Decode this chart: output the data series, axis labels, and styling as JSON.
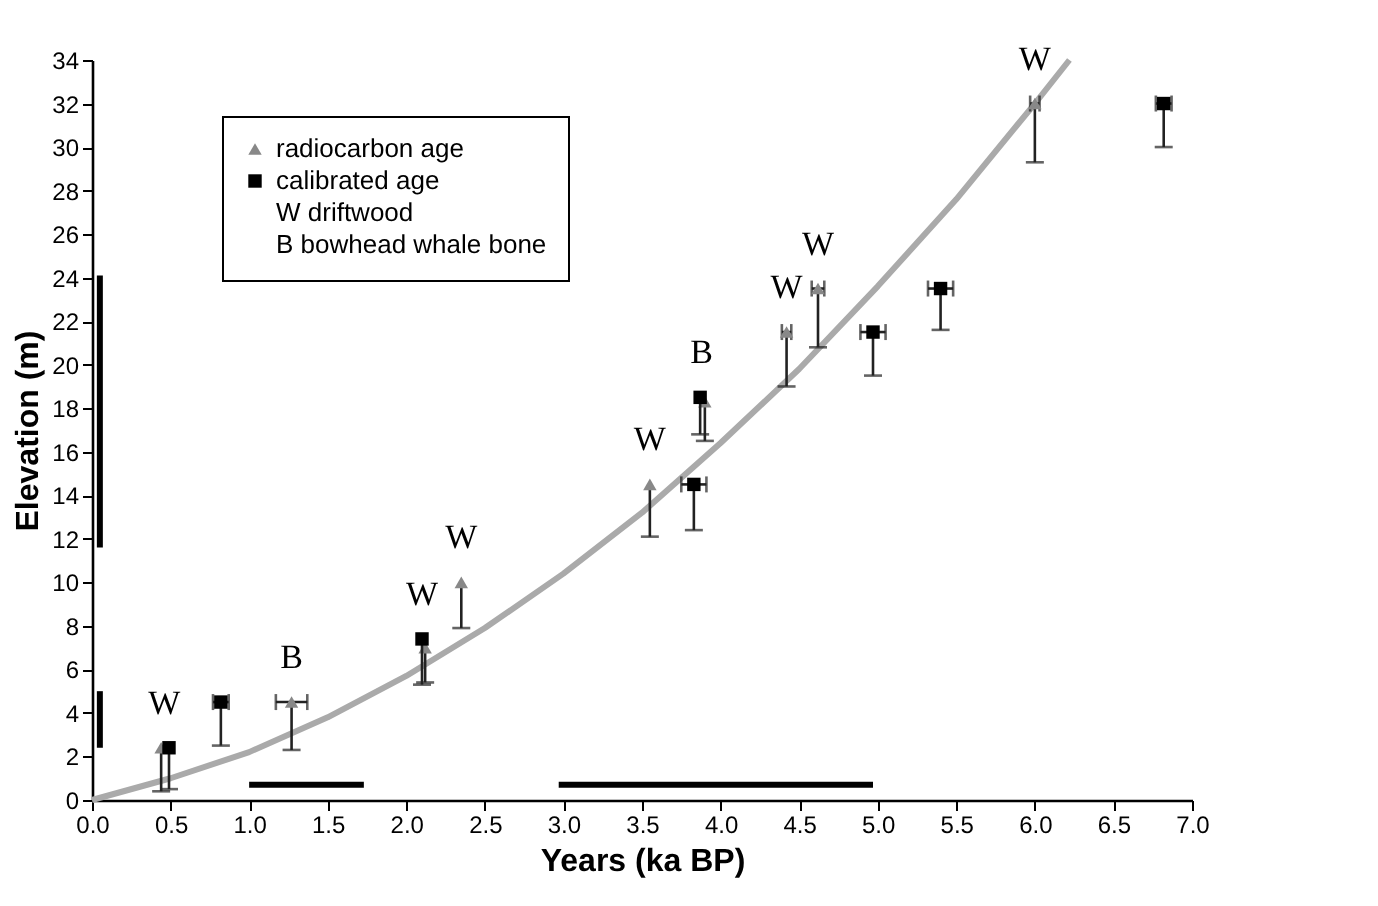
{
  "chart_data": {
    "type": "scatter",
    "xlabel": "Years (ka BP)",
    "ylabel": "Elevation (m)",
    "xlim": [
      0,
      7
    ],
    "ylim": [
      0,
      34
    ],
    "xticks": [
      {
        "value": 0,
        "label": "0.0"
      },
      {
        "value": 0.5,
        "label": "0.5"
      },
      {
        "value": 1,
        "label": "1.0"
      },
      {
        "value": 1.5,
        "label": "1.5"
      },
      {
        "value": 2,
        "label": "2.0"
      },
      {
        "value": 2.5,
        "label": "2.5"
      },
      {
        "value": 3,
        "label": "3.0"
      },
      {
        "value": 3.5,
        "label": "3.5"
      },
      {
        "value": 4,
        "label": "4.0"
      },
      {
        "value": 4.5,
        "label": "4.5"
      },
      {
        "value": 5,
        "label": "5.0"
      },
      {
        "value": 5.5,
        "label": "5.5"
      },
      {
        "value": 6,
        "label": "6.0"
      },
      {
        "value": 6.5,
        "label": "6.5"
      },
      {
        "value": 7,
        "label": "7.0"
      }
    ],
    "yticks": [
      0,
      2,
      4,
      6,
      8,
      10,
      12,
      14,
      16,
      18,
      20,
      22,
      24,
      26,
      28,
      30,
      32,
      34
    ],
    "grid": false,
    "legend": "top left",
    "series": [
      {
        "type": "line",
        "color": "#000000",
        "x": [
          1.0,
          1.73
        ],
        "values": [
          0.7,
          0.7
        ]
      },
      {
        "type": "line",
        "color": "#000000",
        "x": [
          2.97,
          4.97
        ],
        "values": [
          0.7,
          0.7
        ]
      },
      {
        "type": "line",
        "color": "#000000",
        "x": [
          0.05,
          0.05
        ],
        "values": [
          2.4,
          5.0
        ]
      },
      {
        "type": "line",
        "color": "#000000",
        "x": [
          0.05,
          0.05
        ],
        "values": [
          11.6,
          24.1
        ]
      },
      {
        "type": "line",
        "color": "#aaaaaa",
        "x": [
          0,
          0.5,
          1,
          1.5,
          2,
          2.5,
          3,
          3.5,
          4,
          4.5,
          5,
          5.5,
          6,
          6.22
        ],
        "values": [
          0,
          1.0,
          2.2,
          3.8,
          5.7,
          7.9,
          10.4,
          13.2,
          16.4,
          19.8,
          23.6,
          27.6,
          32.0,
          34.0
        ]
      },
      {
        "type": "scatter",
        "name": "radiocarbon age",
        "color": "#888888",
        "marker": "triangle",
        "x": [
          0.44,
          1.27,
          2.12,
          2.35,
          3.55,
          3.9,
          4.42,
          4.62,
          6.0
        ],
        "values": [
          2.4,
          4.5,
          7.0,
          10.0,
          14.5,
          18.3,
          21.5,
          23.5,
          32
        ],
        "errors": [
          [
            0.4,
            2.4
          ],
          [
            2.3,
            4.5
          ],
          [
            5.4,
            7.0
          ],
          [
            7.9,
            10.0
          ],
          [
            12.1,
            14.5
          ],
          [
            16.5,
            18.3
          ],
          [
            19.0,
            21.5
          ],
          [
            20.8,
            23.5
          ],
          [
            29.3,
            32
          ]
        ],
        "xerrors": [
          null,
          0.1,
          null,
          null,
          null,
          null,
          0.03,
          0.04,
          0.03
        ]
      },
      {
        "type": "scatter",
        "name": "calibrated age",
        "color": "#000000",
        "marker": "square",
        "x": [
          0.49,
          0.82,
          2.1,
          3.83,
          3.87,
          4.97,
          5.4,
          6.82
        ],
        "values": [
          2.4,
          4.5,
          7.4,
          14.5,
          18.5,
          21.5,
          23.5,
          32
        ],
        "errors": [
          [
            0.5,
            2.4
          ],
          [
            2.5,
            4.5
          ],
          [
            5.3,
            7.4
          ],
          [
            12.4,
            14.5
          ],
          [
            16.8,
            18.5
          ],
          [
            19.5,
            21.5
          ],
          [
            21.6,
            23.5
          ],
          [
            30,
            32
          ]
        ],
        "xerrors": [
          null,
          0.05,
          null,
          0.08,
          null,
          0.08,
          0.08,
          0.05
        ]
      }
    ],
    "annotations": [
      "W driftwood",
      "B bowhead whale bone",
      {
        "text": "W",
        "x": 0.46,
        "y": 2.4
      },
      {
        "text": "B",
        "x": 1.27,
        "y": 4.5
      },
      {
        "text": "W",
        "x": 2.1,
        "y": 7.4
      },
      {
        "text": "W",
        "x": 2.35,
        "y": 10.0
      },
      {
        "text": "W",
        "x": 3.55,
        "y": 14.5
      },
      {
        "text": "B",
        "x": 3.88,
        "y": 18.5
      },
      {
        "text": "W",
        "x": 4.42,
        "y": 21.5
      },
      {
        "text": "W",
        "x": 4.62,
        "y": 23.5
      },
      {
        "text": "W",
        "x": 6.0,
        "y": 32
      }
    ]
  }
}
